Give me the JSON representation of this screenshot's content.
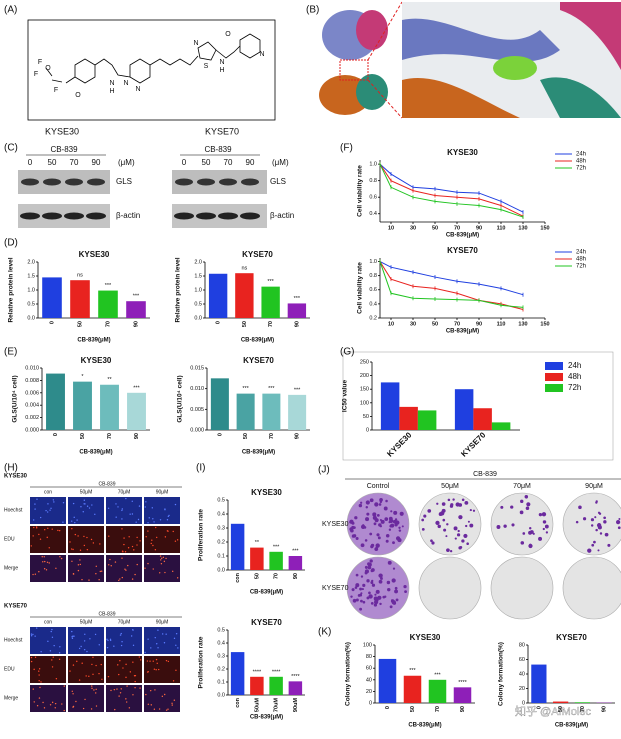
{
  "panel_labels": [
    "(A)",
    "(B)",
    "(C)",
    "(D)",
    "(E)",
    "(F)",
    "(G)",
    "(H)",
    "(I)",
    "(J)",
    "(K)"
  ],
  "structure": {
    "atoms": [
      "F",
      "F",
      "F",
      "O",
      "O",
      "N",
      "H",
      "N",
      "N",
      "S",
      "N",
      "N",
      "H",
      "O",
      "N"
    ]
  },
  "western_blot": {
    "cell_lines": [
      "KYSE30",
      "KYSE70"
    ],
    "treatment": "CB-839",
    "doses": [
      "0",
      "50",
      "70",
      "90"
    ],
    "unit": "(μM)",
    "proteins": [
      "GLS",
      "β-actin"
    ]
  },
  "imaging": {
    "cell_lines": [
      "KYSE30",
      "KYSE70"
    ],
    "treatment": "CB-839",
    "columns": [
      "con",
      "50μM",
      "70μM",
      "90μM"
    ],
    "rows": [
      "Hoechst",
      "EDU",
      "Merge"
    ]
  },
  "colony": {
    "treatment": "CB-839",
    "columns": [
      "Control",
      "50μM",
      "70μM",
      "90μM"
    ],
    "rows": [
      "KYSE30",
      "KYSE70"
    ]
  },
  "watermark": "知乎 @AIMolec",
  "chart_data": [
    {
      "type": "bar",
      "title": "KYSE30",
      "categories": [
        "0",
        "50",
        "70",
        "90"
      ],
      "values": [
        1.45,
        1.35,
        0.98,
        0.6
      ],
      "colors": [
        "#1f3fe0",
        "#e8231f",
        "#21c421",
        "#8e1fb8"
      ],
      "annotations": [
        "ns",
        "***",
        "***"
      ],
      "ylim": [
        0,
        2
      ],
      "yticks": [
        {
          "value": 0,
          "label": "0.0"
        },
        0.5,
        {
          "value": 1,
          "label": "1.0"
        },
        1.5,
        {
          "value": 2,
          "label": "2.0"
        }
      ],
      "y_label": "Relative protein level",
      "x_label": "CB-839(μM)"
    },
    {
      "type": "bar",
      "title": "KYSE70",
      "categories": [
        "0",
        "50",
        "70",
        "90"
      ],
      "values": [
        1.58,
        1.6,
        1.12,
        0.52
      ],
      "colors": [
        "#1f3fe0",
        "#e8231f",
        "#21c421",
        "#8e1fb8"
      ],
      "annotations": [
        "ns",
        "***",
        "***"
      ],
      "ylim": [
        0,
        2
      ],
      "yticks": [
        {
          "value": 0,
          "label": "0.0"
        },
        0.5,
        {
          "value": 1,
          "label": "1.0"
        },
        1.5,
        {
          "value": 2,
          "label": "2.0"
        }
      ],
      "y_label": "Relative protein level",
      "x_label": "CB-839(μM)"
    },
    {
      "type": "bar",
      "title": "KYSE30",
      "categories": [
        "0",
        "50",
        "70",
        "90"
      ],
      "values": [
        0.0091,
        0.0078,
        0.0073,
        0.006
      ],
      "colors": [
        "#2e8b8b",
        "#4aa3a3",
        "#6dbcbc",
        "#a8d8d8"
      ],
      "annotations": [
        "*",
        "**",
        "***"
      ],
      "ylim": [
        0,
        0.01
      ],
      "yticks": [
        {
          "value": 0,
          "label": "0.000"
        },
        0.002,
        0.004,
        0.006,
        0.008,
        {
          "value": 0.01,
          "label": "0.010"
        }
      ],
      "y_label": "GLS(U/10⁴ cell)",
      "x_label": "CB-839(μM)"
    },
    {
      "type": "bar",
      "title": "KYSE70",
      "categories": [
        "0",
        "50",
        "70",
        "90"
      ],
      "values": [
        0.0125,
        0.0088,
        0.0088,
        0.0085
      ],
      "colors": [
        "#2e8b8b",
        "#4aa3a3",
        "#6dbcbc",
        "#a8d8d8"
      ],
      "annotations": [
        "***",
        "***",
        "***"
      ],
      "ylim": [
        0,
        0.015
      ],
      "yticks": [
        {
          "value": 0,
          "label": "0.000"
        },
        0.005,
        {
          "value": 0.01,
          "label": "0.010"
        },
        0.015
      ],
      "y_label": "GLS(U/10⁴ cell)",
      "x_label": "CB-839(μM)"
    },
    {
      "type": "line",
      "title": "KYSE30",
      "x": [
        0,
        10,
        30,
        50,
        70,
        90,
        110,
        130
      ],
      "series": [
        {
          "name": "24h",
          "color": "#1f3fe0",
          "values": [
            1.0,
            0.88,
            0.72,
            0.7,
            0.66,
            0.65,
            0.55,
            0.42
          ]
        },
        {
          "name": "48h",
          "color": "#e8231f",
          "values": [
            1.0,
            0.8,
            0.68,
            0.62,
            0.6,
            0.58,
            0.5,
            0.37
          ]
        },
        {
          "name": "72h",
          "color": "#21c421",
          "values": [
            1.0,
            0.72,
            0.6,
            0.55,
            0.52,
            0.5,
            0.45,
            0.36
          ]
        }
      ],
      "xlim": [
        0,
        150
      ],
      "xticks": [
        10,
        30,
        50,
        70,
        90,
        110,
        130,
        150
      ],
      "ylim": [
        0.3,
        1.05
      ],
      "yticks": [
        0.4,
        0.6,
        0.8,
        {
          "value": 1,
          "label": "1.0"
        }
      ],
      "y_label": "Cell viability rate",
      "x_label": "CB-839(μM)"
    },
    {
      "type": "line",
      "title": "KYSE70",
      "x": [
        0,
        10,
        30,
        50,
        70,
        90,
        110,
        130
      ],
      "series": [
        {
          "name": "24h",
          "color": "#1f3fe0",
          "values": [
            1.0,
            0.92,
            0.85,
            0.78,
            0.72,
            0.68,
            0.62,
            0.53
          ]
        },
        {
          "name": "48h",
          "color": "#e8231f",
          "values": [
            1.0,
            0.75,
            0.65,
            0.62,
            0.55,
            0.45,
            0.4,
            0.32
          ]
        },
        {
          "name": "72h",
          "color": "#21c421",
          "values": [
            1.0,
            0.55,
            0.48,
            0.47,
            0.46,
            0.45,
            0.38,
            0.35
          ]
        }
      ],
      "xlim": [
        0,
        150
      ],
      "xticks": [
        10,
        30,
        50,
        70,
        90,
        110,
        130,
        150
      ],
      "ylim": [
        0.2,
        1.05
      ],
      "yticks": [
        0.2,
        0.4,
        0.6,
        0.8,
        {
          "value": 1,
          "label": "1.0"
        }
      ],
      "y_label": "Cell viability rate",
      "x_label": "CB-839(μM)"
    },
    {
      "type": "grouped_bar",
      "categories": [
        "KYSE30",
        "KYSE70"
      ],
      "series": [
        {
          "name": "24h",
          "color": "#1f3fe0",
          "values": [
            175,
            150
          ]
        },
        {
          "name": "48h",
          "color": "#e8231f",
          "values": [
            85,
            80
          ]
        },
        {
          "name": "72h",
          "color": "#21c421",
          "values": [
            72,
            28
          ]
        }
      ],
      "ylim": [
        0,
        250
      ],
      "yticks": [
        0,
        50,
        100,
        150,
        200,
        250
      ],
      "y_label": "IC50 value"
    },
    {
      "type": "bar",
      "title": "KYSE30",
      "categories": [
        "con",
        "50",
        "70",
        "90"
      ],
      "values": [
        0.33,
        0.16,
        0.13,
        0.1
      ],
      "colors": [
        "#1f3fe0",
        "#e8231f",
        "#21c421",
        "#8e1fb8"
      ],
      "annotations": [
        "**",
        "***",
        "***"
      ],
      "ylim": [
        0,
        0.5
      ],
      "yticks": [
        {
          "value": 0,
          "label": "0.0"
        },
        0.1,
        0.2,
        0.3,
        0.4,
        0.5
      ],
      "y_label": "Proliferation rate",
      "x_label": "CB-839(μM)"
    },
    {
      "type": "bar",
      "title": "KYSE70",
      "categories": [
        "con",
        "50uM",
        "70uM",
        "90uM"
      ],
      "values": [
        0.33,
        0.14,
        0.14,
        0.105
      ],
      "colors": [
        "#1f3fe0",
        "#e8231f",
        "#21c421",
        "#8e1fb8"
      ],
      "annotations": [
        "****",
        "****",
        "****"
      ],
      "ylim": [
        0,
        0.5
      ],
      "yticks": [
        {
          "value": 0,
          "label": "0.0"
        },
        0.1,
        0.2,
        0.3,
        0.4,
        0.5
      ],
      "y_label": "Proliferation rate",
      "x_label": "CB-839(μM)"
    },
    {
      "type": "bar",
      "title": "KYSE30",
      "categories": [
        "0",
        "50",
        "70",
        "90"
      ],
      "values": [
        76,
        47,
        40,
        27
      ],
      "colors": [
        "#1f3fe0",
        "#e8231f",
        "#21c421",
        "#8e1fb8"
      ],
      "annotations": [
        "***",
        "***",
        "****"
      ],
      "ylim": [
        0,
        100
      ],
      "yticks": [
        0,
        20,
        40,
        60,
        80,
        100
      ],
      "y_label": "Colony formation(%)",
      "x_label": "CB-839(μM)"
    },
    {
      "type": "bar",
      "title": "KYSE70",
      "categories": [
        "0",
        "50",
        "70",
        "90"
      ],
      "values": [
        53,
        2,
        1,
        0.5
      ],
      "colors": [
        "#1f3fe0",
        "#e8231f",
        "#21c421",
        "#8e1fb8"
      ],
      "ylim": [
        0,
        80
      ],
      "yticks": [
        0,
        20,
        40,
        60,
        80
      ],
      "y_label": "Colony formation(%)",
      "x_label": "CB-839(μM)"
    }
  ]
}
